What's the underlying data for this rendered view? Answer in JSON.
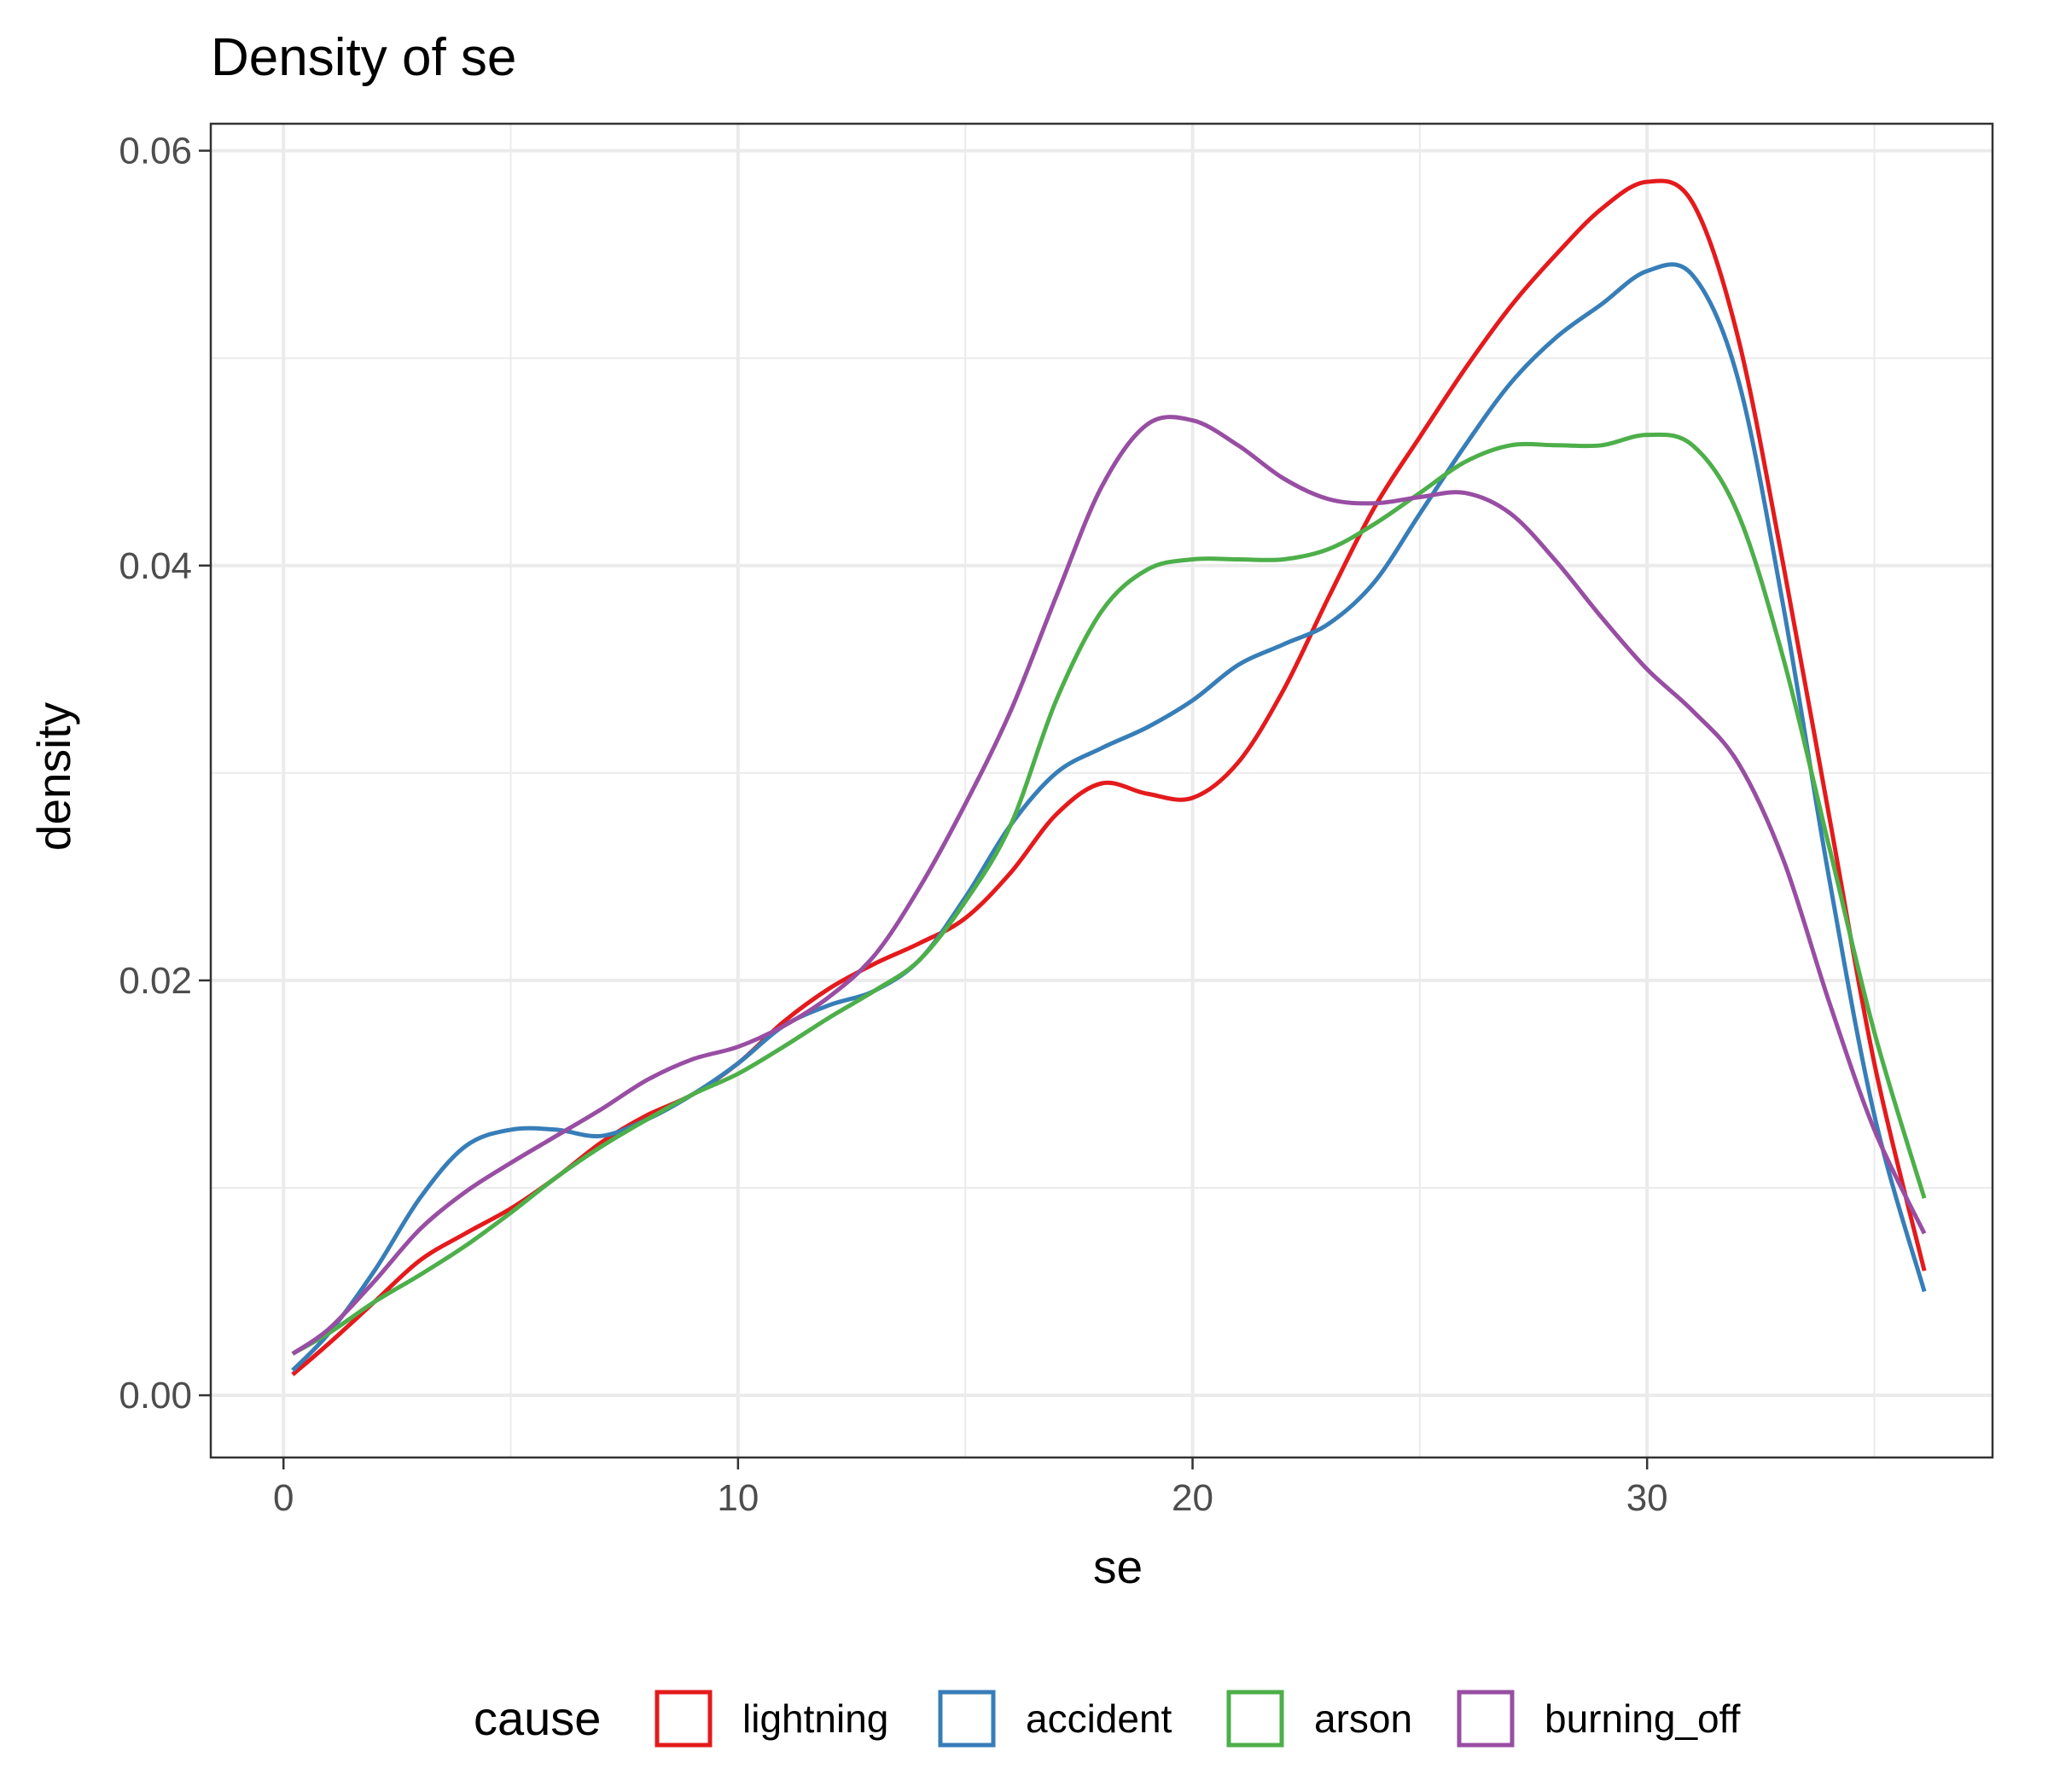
{
  "chart_data": {
    "type": "line",
    "title": "Density of se",
    "xlabel": "se",
    "ylabel": "density",
    "xlim": [
      -1.6,
      37.6
    ],
    "ylim": [
      -0.003,
      0.0613
    ],
    "x_ticks": [
      0,
      10,
      20,
      30
    ],
    "x_tick_labels": [
      "0",
      "10",
      "20",
      "30"
    ],
    "y_ticks": [
      0.0,
      0.02,
      0.04,
      0.06
    ],
    "y_tick_labels": [
      "0.00",
      "0.02",
      "0.04",
      "0.06"
    ],
    "grid": true,
    "legend": {
      "title": "cause",
      "position": "bottom"
    },
    "x": [
      0.2,
      1,
      2,
      3,
      4,
      5,
      6,
      7,
      8,
      9,
      10,
      11,
      12,
      13,
      14,
      15,
      16,
      17,
      18,
      19,
      20,
      21,
      22,
      23,
      24,
      25,
      26,
      27,
      28,
      29,
      30,
      31,
      32,
      33,
      34,
      35,
      36.1
    ],
    "series": [
      {
        "name": "lightning",
        "color": "#e41a1c",
        "values": [
          0.001,
          0.0025,
          0.0045,
          0.0065,
          0.0078,
          0.009,
          0.0105,
          0.0122,
          0.0135,
          0.0145,
          0.016,
          0.018,
          0.0196,
          0.0208,
          0.0218,
          0.023,
          0.0252,
          0.028,
          0.0295,
          0.029,
          0.0288,
          0.0305,
          0.034,
          0.0385,
          0.0428,
          0.0462,
          0.0495,
          0.0525,
          0.055,
          0.0572,
          0.0585,
          0.0575,
          0.051,
          0.04,
          0.028,
          0.016,
          0.006
        ]
      },
      {
        "name": "accident",
        "color": "#377eb8",
        "values": [
          0.0012,
          0.003,
          0.006,
          0.0095,
          0.012,
          0.0128,
          0.0128,
          0.0125,
          0.0133,
          0.0145,
          0.016,
          0.0178,
          0.0188,
          0.0195,
          0.021,
          0.024,
          0.0275,
          0.03,
          0.0312,
          0.0322,
          0.0335,
          0.0352,
          0.0362,
          0.0372,
          0.0392,
          0.0425,
          0.0458,
          0.0488,
          0.051,
          0.0526,
          0.0542,
          0.054,
          0.049,
          0.038,
          0.025,
          0.0135,
          0.005
        ]
      },
      {
        "name": "arson",
        "color": "#4daf4a",
        "values": [
          0.002,
          0.003,
          0.0045,
          0.0058,
          0.0072,
          0.0088,
          0.0105,
          0.012,
          0.0133,
          0.0145,
          0.0155,
          0.0168,
          0.0182,
          0.0195,
          0.021,
          0.0238,
          0.0275,
          0.0335,
          0.0378,
          0.0398,
          0.0403,
          0.0403,
          0.0403,
          0.0408,
          0.042,
          0.0435,
          0.045,
          0.0458,
          0.0458,
          0.0458,
          0.0463,
          0.0458,
          0.0425,
          0.0355,
          0.0265,
          0.0175,
          0.0095
        ]
      },
      {
        "name": "burning_off",
        "color": "#984ea3",
        "values": [
          0.002,
          0.0032,
          0.0055,
          0.008,
          0.0098,
          0.0112,
          0.0125,
          0.0138,
          0.0152,
          0.0162,
          0.0168,
          0.0178,
          0.0192,
          0.0212,
          0.0245,
          0.0285,
          0.033,
          0.0385,
          0.0438,
          0.0468,
          0.047,
          0.0458,
          0.0442,
          0.0432,
          0.043,
          0.0433,
          0.0435,
          0.0425,
          0.0402,
          0.0375,
          0.035,
          0.033,
          0.0305,
          0.0258,
          0.019,
          0.0128,
          0.0078
        ]
      }
    ]
  }
}
